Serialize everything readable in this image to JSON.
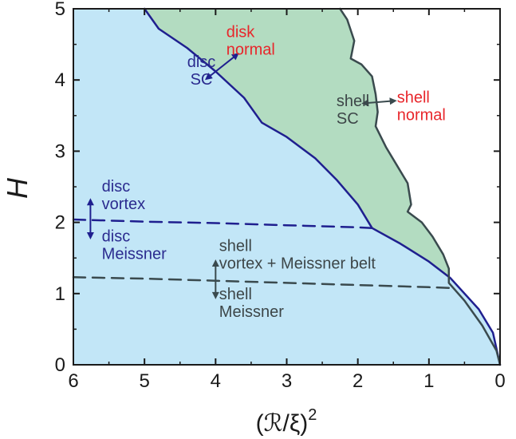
{
  "chart_data": {
    "type": "area",
    "title": "",
    "xlabel": "(ℛ/ξ)",
    "xlabel_sup": "2",
    "ylabel": "H",
    "x_reversed": true,
    "xlim": [
      6,
      0
    ],
    "ylim": [
      0,
      5
    ],
    "xticks": [
      "6",
      "5",
      "4",
      "3",
      "2",
      "1",
      "0"
    ],
    "yticks": [
      "0",
      "1",
      "2",
      "3",
      "4",
      "5"
    ],
    "grid": false,
    "colors": {
      "disc_sc_region": "#c2e6f7",
      "shell_sc_region": "#b3dcc1",
      "disc_line": "#1f1f8f",
      "shell_line": "#3a4a4e",
      "disc_text": "#2b2b8f",
      "shell_text": "#3d4648",
      "normal_text": "#e8262b"
    },
    "series": [
      {
        "kind": "solid",
        "color_key": "disc_line",
        "points": [
          [
            5.0,
            5.0
          ],
          [
            4.8,
            4.72
          ],
          [
            4.4,
            4.45
          ],
          [
            4.0,
            4.12
          ],
          [
            3.6,
            3.75
          ],
          [
            3.35,
            3.4
          ],
          [
            3.0,
            3.2
          ],
          [
            2.6,
            2.9
          ],
          [
            2.3,
            2.6
          ],
          [
            2.0,
            2.25
          ],
          [
            1.8,
            1.92
          ],
          [
            1.4,
            1.7
          ],
          [
            1.0,
            1.45
          ],
          [
            0.7,
            1.22
          ],
          [
            0.3,
            0.78
          ],
          [
            0.1,
            0.45
          ],
          [
            0.0,
            0.0
          ]
        ]
      },
      {
        "kind": "solid",
        "color_key": "shell_line",
        "points": [
          [
            2.25,
            5.0
          ],
          [
            2.15,
            4.85
          ],
          [
            2.05,
            4.55
          ],
          [
            2.1,
            4.3
          ],
          [
            1.95,
            4.22
          ],
          [
            1.8,
            4.05
          ],
          [
            1.75,
            3.8
          ],
          [
            1.72,
            3.55
          ],
          [
            1.75,
            3.35
          ],
          [
            1.6,
            3.05
          ],
          [
            1.45,
            2.8
          ],
          [
            1.3,
            2.55
          ],
          [
            1.25,
            2.25
          ],
          [
            1.3,
            2.15
          ],
          [
            1.1,
            2.0
          ],
          [
            0.95,
            1.8
          ],
          [
            0.8,
            1.55
          ],
          [
            0.72,
            1.35
          ],
          [
            0.72,
            1.15
          ],
          [
            0.5,
            0.9
          ],
          [
            0.25,
            0.55
          ],
          [
            0.05,
            0.2
          ],
          [
            0.0,
            0.0
          ]
        ]
      },
      {
        "kind": "dashed",
        "color_key": "disc_line",
        "points": [
          [
            6.0,
            2.04
          ],
          [
            5.0,
            2.01
          ],
          [
            4.0,
            1.99
          ],
          [
            3.0,
            1.96
          ],
          [
            2.0,
            1.93
          ],
          [
            1.8,
            1.92
          ]
        ]
      },
      {
        "kind": "dashed",
        "color_key": "shell_line",
        "points": [
          [
            6.0,
            1.23
          ],
          [
            5.0,
            1.21
          ],
          [
            4.0,
            1.18
          ],
          [
            3.0,
            1.15
          ],
          [
            2.0,
            1.12
          ],
          [
            1.0,
            1.09
          ],
          [
            0.72,
            1.08
          ]
        ]
      }
    ],
    "annotations": [
      {
        "lines": [
          "disk",
          "normal"
        ],
        "color_key": "normal_text",
        "x": 3.85,
        "y": 4.6,
        "anchor": "start"
      },
      {
        "lines": [
          "disc",
          "SC"
        ],
        "color_key": "disc_text",
        "x": 4.2,
        "y": 4.18,
        "anchor": "middle"
      },
      {
        "lines": [
          "shell",
          "SC"
        ],
        "color_key": "shell_text",
        "x": 2.3,
        "y": 3.63,
        "anchor": "start"
      },
      {
        "lines": [
          "shell",
          "normal"
        ],
        "color_key": "normal_text",
        "x": 1.45,
        "y": 3.68,
        "anchor": "start"
      },
      {
        "lines": [
          "disc",
          "vortex"
        ],
        "color_key": "disc_text",
        "x": 5.6,
        "y": 2.43,
        "anchor": "start"
      },
      {
        "lines": [
          "disc",
          "Meissner"
        ],
        "color_key": "disc_text",
        "x": 5.6,
        "y": 1.73,
        "anchor": "start"
      },
      {
        "lines": [
          "shell",
          "vortex + Meissner belt"
        ],
        "color_key": "shell_text",
        "x": 3.95,
        "y": 1.6,
        "anchor": "start"
      },
      {
        "lines": [
          "shell",
          "Meissner"
        ],
        "color_key": "shell_text",
        "x": 3.95,
        "y": 0.92,
        "anchor": "start"
      }
    ],
    "arrows": [
      {
        "from": [
          4.15,
          4.0
        ],
        "to": [
          3.67,
          4.38
        ],
        "color_key": "disc_line"
      },
      {
        "from": [
          1.95,
          3.67
        ],
        "to": [
          1.45,
          3.71
        ],
        "color_key": "shell_line"
      },
      {
        "from": [
          5.76,
          2.34
        ],
        "to": [
          5.76,
          1.76
        ],
        "color_key": "disc_line"
      },
      {
        "from": [
          4.0,
          1.48
        ],
        "to": [
          4.0,
          0.92
        ],
        "color_key": "shell_line"
      }
    ]
  }
}
